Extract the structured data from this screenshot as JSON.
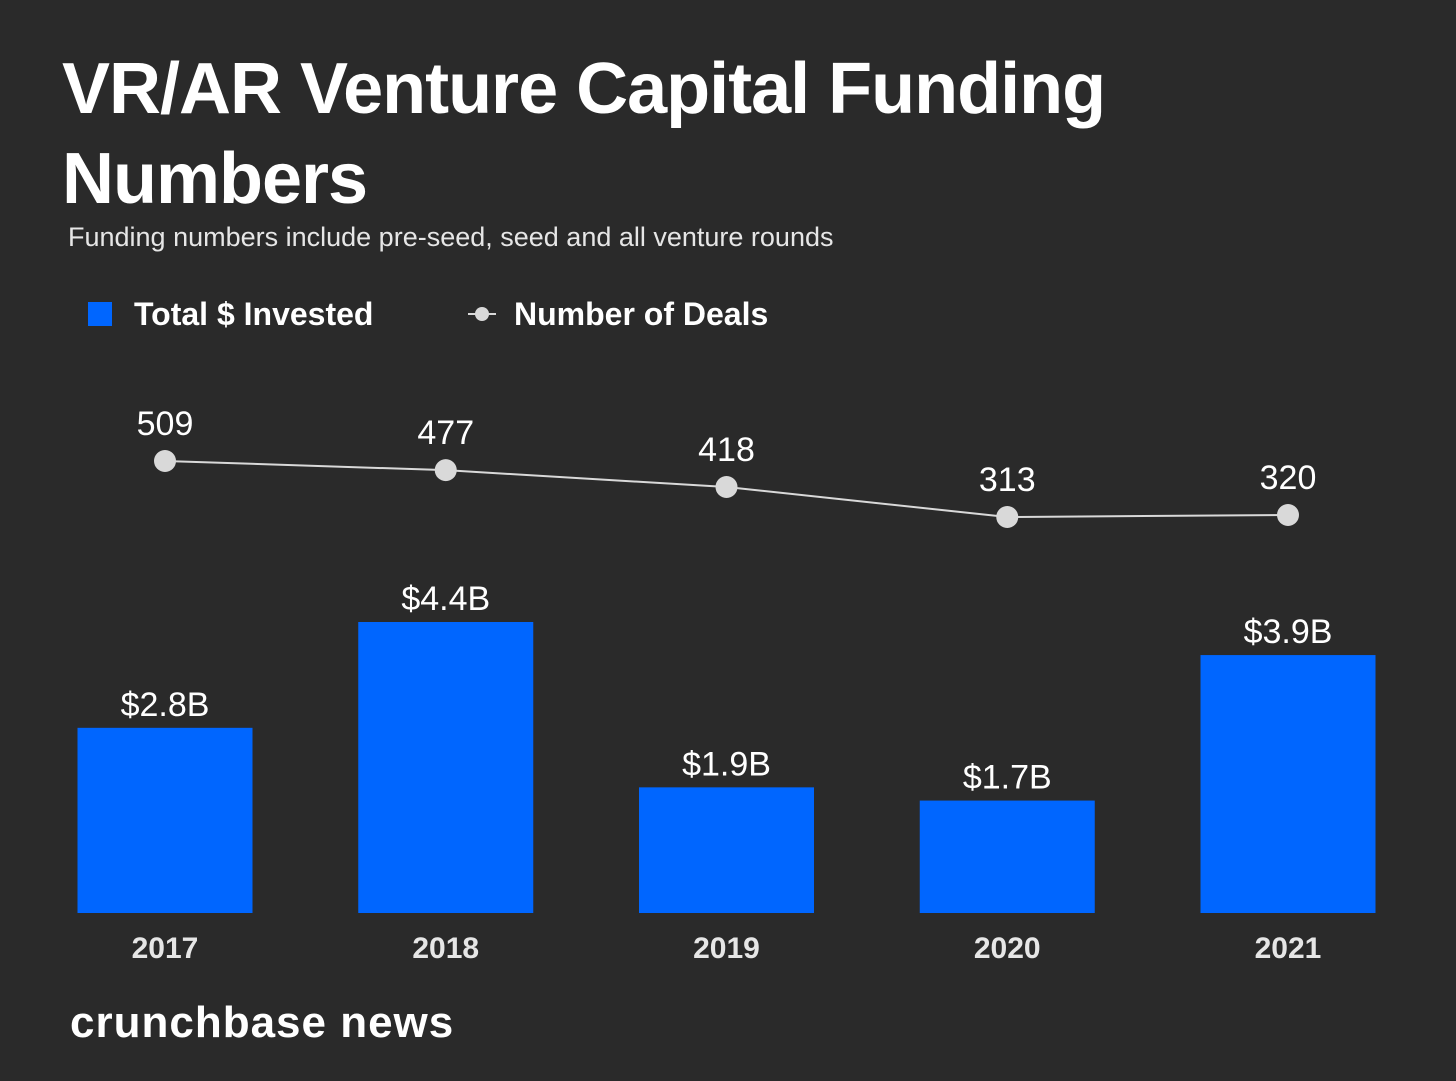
{
  "chart_data": {
    "type": "bar",
    "title": "VR/AR Venture Capital Funding Numbers",
    "subtitle": "Funding numbers include pre-seed, seed and all venture rounds",
    "categories": [
      "2017",
      "2018",
      "2019",
      "2020",
      "2021"
    ],
    "series": [
      {
        "name": "Total $ Invested",
        "type": "bar",
        "unit": "$B",
        "values": [
          2.8,
          4.4,
          1.9,
          1.7,
          3.9
        ],
        "labels": [
          "$2.8B",
          "$4.4B",
          "$1.9B",
          "$1.7B",
          "$3.9B"
        ],
        "color": "#0066ff"
      },
      {
        "name": "Number of Deals",
        "type": "line",
        "values": [
          509,
          477,
          418,
          313,
          320
        ],
        "labels": [
          "509",
          "477",
          "418",
          "313",
          "320"
        ],
        "color": "#d9d9d9"
      }
    ],
    "legend_position": "top-left",
    "grid": false,
    "xlabel": "",
    "ylabel": ""
  },
  "footer": {
    "brand": "crunchbase news"
  },
  "colors": {
    "background": "#2a2a2a",
    "bar": "#0066ff",
    "line": "#d9d9d9",
    "text": "#ffffff"
  }
}
